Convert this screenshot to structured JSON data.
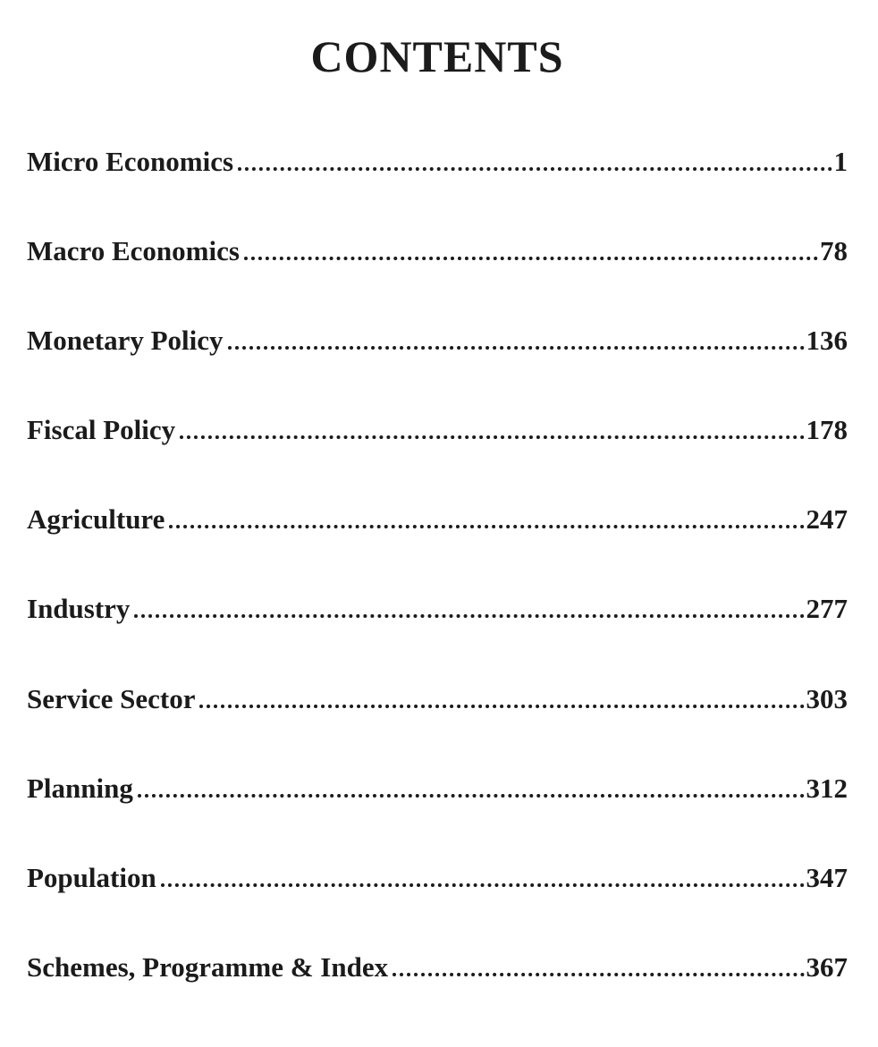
{
  "document": {
    "title": "CONTENTS"
  },
  "toc": {
    "entries": [
      {
        "label": "Micro Economics",
        "page": "1"
      },
      {
        "label": "Macro Economics",
        "page": "78"
      },
      {
        "label": "Monetary Policy",
        "page": "136"
      },
      {
        "label": "Fiscal Policy",
        "page": "178"
      },
      {
        "label": "Agriculture",
        "page": "247"
      },
      {
        "label": "Industry",
        "page": "277"
      },
      {
        "label": "Service Sector",
        "page": "303"
      },
      {
        "label": "Planning",
        "page": "312"
      },
      {
        "label": "Population",
        "page": "347"
      },
      {
        "label": "Schemes, Programme & Index",
        "page": "367"
      }
    ]
  },
  "colors": {
    "text": "#1b1b1b",
    "background": "#ffffff"
  }
}
